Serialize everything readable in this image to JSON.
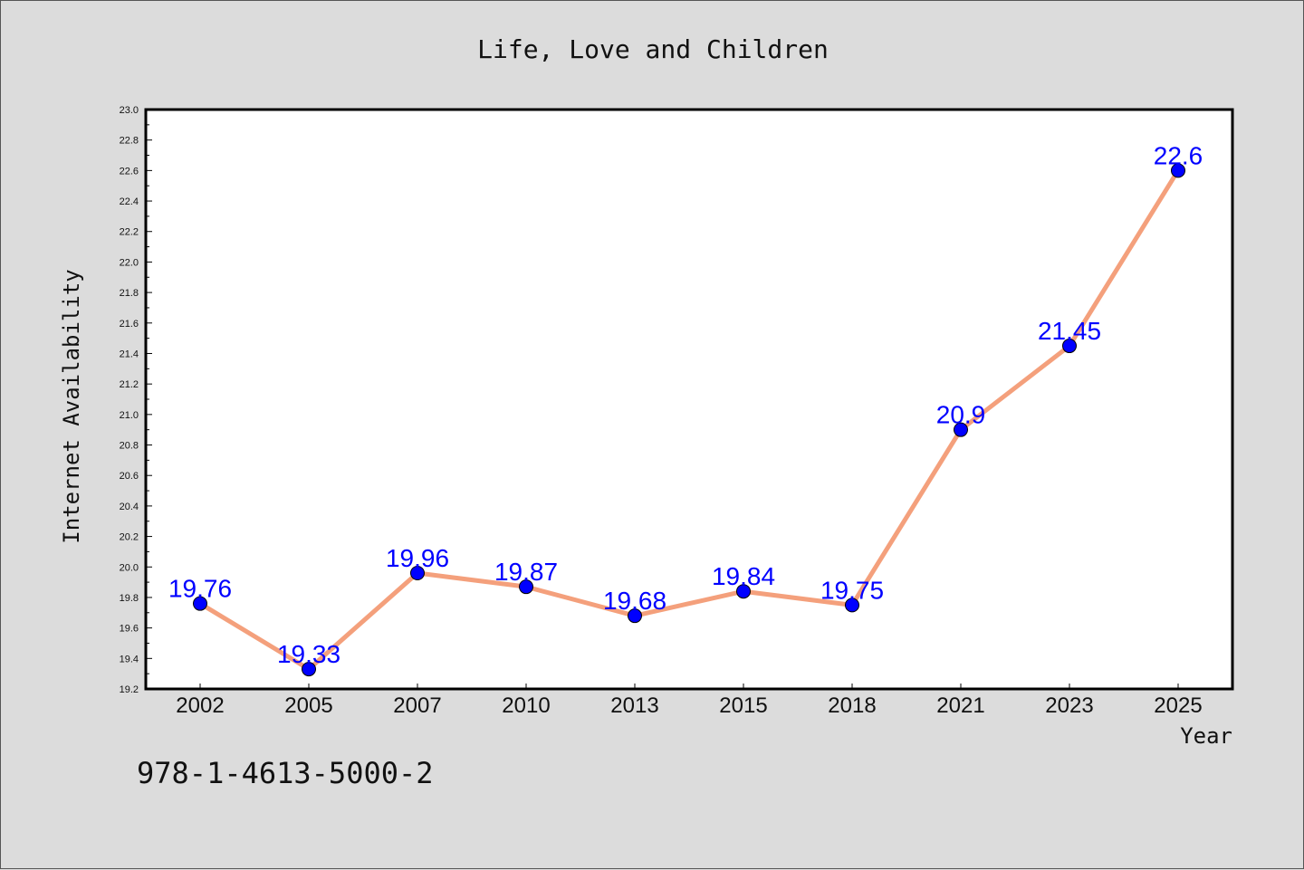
{
  "chart_data": {
    "type": "line",
    "title": "Life, Love and Children",
    "xlabel": "Year",
    "ylabel": "Internet Availability",
    "categories": [
      "2002",
      "2005",
      "2007",
      "2010",
      "2013",
      "2015",
      "2018",
      "2021",
      "2023",
      "2025"
    ],
    "series": [
      {
        "values": [
          19.76,
          19.33,
          19.96,
          19.87,
          19.68,
          19.84,
          19.75,
          20.9,
          21.45,
          22.6
        ],
        "data_labels": [
          "19.76",
          "19.33",
          "19.96",
          "19.87",
          "19.68",
          "19.84",
          "19.75",
          "20.9",
          "21.45",
          "22.6"
        ]
      }
    ],
    "ylim": [
      19.2,
      23.0
    ],
    "yticks": [
      "19.2",
      "19.4",
      "19.6",
      "19.8",
      "20.0",
      "20.2",
      "20.4",
      "20.6",
      "20.8",
      "21.0",
      "21.2",
      "21.4",
      "21.6",
      "21.8",
      "22.0",
      "22.2",
      "22.4",
      "22.6",
      "22.8",
      "23.0"
    ],
    "grid": false,
    "annotation": "978-1-4613-5000-2",
    "colors": {
      "line": "#f4a07c",
      "marker": "#0000ff",
      "data_label": "#0000ff",
      "plot_background": "#ffffff",
      "figure_background": "#dcdcdc"
    }
  }
}
